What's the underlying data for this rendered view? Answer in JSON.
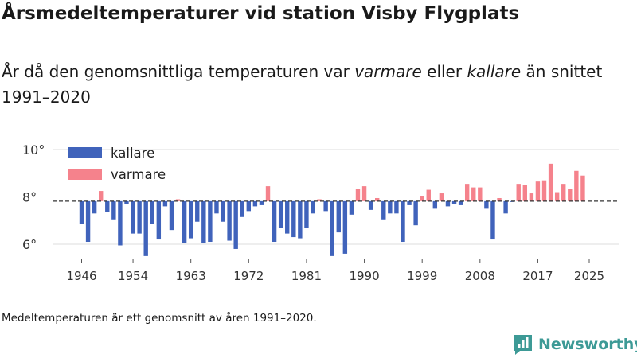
{
  "header": {
    "title": "Årsmedeltemperaturer vid station Visby Flygplats",
    "subtitle_pre": "År då den genomsnittliga temperaturen var ",
    "subtitle_warm": "varmare",
    "subtitle_mid": " eller ",
    "subtitle_cold": "kallare",
    "subtitle_post": " än snittet 1991–2020"
  },
  "footnote": "Medeltemperaturen är ett genomsnitt av åren 1991–2020.",
  "brand": {
    "name": "Newsworthy",
    "color": "#3d9a96"
  },
  "colors": {
    "colder": "#4063bb",
    "warmer": "#f5828c",
    "reference": "#333333",
    "grid": "#dedede",
    "text": "#333333"
  },
  "chart_data": {
    "type": "bar",
    "title": "Årsmedeltemperaturer vid station Visby Flygplats",
    "xlabel": "",
    "ylabel": "",
    "baseline": 7.82,
    "ylim": [
      5.5,
      10.3
    ],
    "yticks": [
      6,
      8,
      10
    ],
    "ytick_labels": [
      "6°",
      "8°",
      "10°"
    ],
    "xticks": [
      1946,
      1954,
      1963,
      1972,
      1981,
      1990,
      1999,
      2008,
      2017,
      2025
    ],
    "legend": {
      "position": "top-left",
      "entries": [
        {
          "name": "kallare",
          "color": "#4063bb"
        },
        {
          "name": "varmare",
          "color": "#f5828c"
        }
      ]
    },
    "years": [
      1946,
      1947,
      1948,
      1949,
      1950,
      1951,
      1952,
      1953,
      1954,
      1955,
      1956,
      1957,
      1958,
      1959,
      1960,
      1961,
      1962,
      1963,
      1964,
      1965,
      1966,
      1967,
      1968,
      1969,
      1970,
      1971,
      1972,
      1973,
      1974,
      1975,
      1976,
      1977,
      1978,
      1979,
      1980,
      1981,
      1982,
      1983,
      1984,
      1985,
      1986,
      1987,
      1988,
      1989,
      1990,
      1991,
      1992,
      1993,
      1994,
      1995,
      1996,
      1997,
      1998,
      1999,
      2000,
      2001,
      2002,
      2003,
      2004,
      2005,
      2006,
      2007,
      2008,
      2009,
      2010,
      2011,
      2012,
      2013,
      2014,
      2015,
      2016,
      2017,
      2018,
      2019,
      2020,
      2021,
      2022,
      2023,
      2024,
      2025
    ],
    "values": [
      6.85,
      6.1,
      7.3,
      8.25,
      7.35,
      7.05,
      5.95,
      7.7,
      6.45,
      6.45,
      5.5,
      6.85,
      6.2,
      7.6,
      6.6,
      7.9,
      6.05,
      6.25,
      6.95,
      6.05,
      6.1,
      7.3,
      6.95,
      6.15,
      5.8,
      7.15,
      7.4,
      7.6,
      7.65,
      8.45,
      6.1,
      6.7,
      6.45,
      6.3,
      6.25,
      6.7,
      7.3,
      7.9,
      7.4,
      5.5,
      6.5,
      5.6,
      7.25,
      8.35,
      8.45,
      7.45,
      7.95,
      7.05,
      7.3,
      7.3,
      6.1,
      7.65,
      6.8,
      8.05,
      8.3,
      7.5,
      8.15,
      7.6,
      7.7,
      7.65,
      8.55,
      8.4,
      8.4,
      7.5,
      6.2,
      7.95,
      7.3,
      7.8,
      8.55,
      8.5,
      8.15,
      8.65,
      8.7,
      9.4,
      8.2,
      8.55,
      8.35,
      9.1,
      8.9,
      null
    ]
  }
}
